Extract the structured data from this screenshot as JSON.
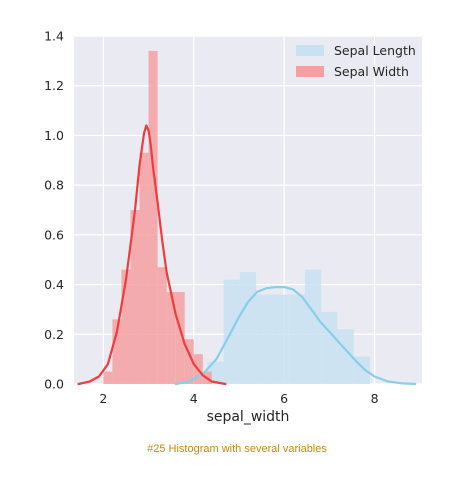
{
  "caption": "#25 Histogram with several variables",
  "chart_data": {
    "type": "histogram",
    "xlabel": "sepal_width",
    "ylabel": "",
    "xlim": [
      1.35,
      9.05
    ],
    "ylim": [
      0,
      1.4
    ],
    "xticks": [
      2,
      4,
      6,
      8
    ],
    "yticks": [
      0.0,
      0.2,
      0.4,
      0.6,
      0.8,
      1.0,
      1.2,
      1.4
    ],
    "grid": true,
    "background": "#eaeaf2",
    "legend_position": "top-right",
    "series": [
      {
        "name": "Sepal Length",
        "color": "#87ceeb",
        "bar_color": "#c8e2f2",
        "bins": [
          {
            "x0": 4.3,
            "x1": 4.66,
            "density": 0.09
          },
          {
            "x0": 4.66,
            "x1": 5.02,
            "density": 0.42
          },
          {
            "x0": 5.02,
            "x1": 5.38,
            "density": 0.45
          },
          {
            "x0": 5.38,
            "x1": 5.74,
            "density": 0.36
          },
          {
            "x0": 5.74,
            "x1": 6.1,
            "density": 0.36
          },
          {
            "x0": 6.1,
            "x1": 6.46,
            "density": 0.36
          },
          {
            "x0": 6.46,
            "x1": 6.82,
            "density": 0.46
          },
          {
            "x0": 6.82,
            "x1": 7.18,
            "density": 0.29
          },
          {
            "x0": 7.18,
            "x1": 7.54,
            "density": 0.22
          },
          {
            "x0": 7.54,
            "x1": 7.9,
            "density": 0.11
          }
        ],
        "kde": {
          "x": [
            3.6,
            3.9,
            4.2,
            4.5,
            4.8,
            5.0,
            5.2,
            5.4,
            5.6,
            5.8,
            6.0,
            6.2,
            6.4,
            6.6,
            6.8,
            7.0,
            7.2,
            7.4,
            7.6,
            7.8,
            8.0,
            8.3,
            8.6,
            8.9
          ],
          "y": [
            0.0,
            0.01,
            0.04,
            0.1,
            0.2,
            0.27,
            0.33,
            0.37,
            0.385,
            0.39,
            0.39,
            0.38,
            0.35,
            0.3,
            0.25,
            0.21,
            0.17,
            0.13,
            0.09,
            0.055,
            0.03,
            0.01,
            0.003,
            0.0
          ]
        }
      },
      {
        "name": "Sepal Width",
        "color": "#f03c3c",
        "bar_color": "#f4a0a2",
        "bins": [
          {
            "x0": 2.0,
            "x1": 2.2,
            "density": 0.05
          },
          {
            "x0": 2.2,
            "x1": 2.4,
            "density": 0.26
          },
          {
            "x0": 2.4,
            "x1": 2.6,
            "density": 0.46
          },
          {
            "x0": 2.6,
            "x1": 2.8,
            "density": 0.7
          },
          {
            "x0": 2.8,
            "x1": 3.0,
            "density": 0.93
          },
          {
            "x0": 3.0,
            "x1": 3.2,
            "density": 1.34
          },
          {
            "x0": 3.2,
            "x1": 3.4,
            "density": 0.47
          },
          {
            "x0": 3.4,
            "x1": 3.6,
            "density": 0.37
          },
          {
            "x0": 3.6,
            "x1": 3.8,
            "density": 0.37
          },
          {
            "x0": 3.8,
            "x1": 4.0,
            "density": 0.18
          },
          {
            "x0": 4.0,
            "x1": 4.2,
            "density": 0.12
          },
          {
            "x0": 4.2,
            "x1": 4.4,
            "density": 0.05
          }
        ],
        "kde": {
          "x": [
            1.45,
            1.7,
            1.9,
            2.1,
            2.3,
            2.5,
            2.7,
            2.8,
            2.9,
            2.95,
            3.0,
            3.05,
            3.1,
            3.2,
            3.3,
            3.4,
            3.6,
            3.8,
            4.0,
            4.2,
            4.4,
            4.7
          ],
          "y": [
            0.0,
            0.01,
            0.03,
            0.08,
            0.21,
            0.42,
            0.7,
            0.88,
            1.01,
            1.04,
            1.02,
            0.96,
            0.87,
            0.73,
            0.58,
            0.45,
            0.28,
            0.16,
            0.08,
            0.035,
            0.01,
            0.0
          ]
        }
      }
    ]
  }
}
